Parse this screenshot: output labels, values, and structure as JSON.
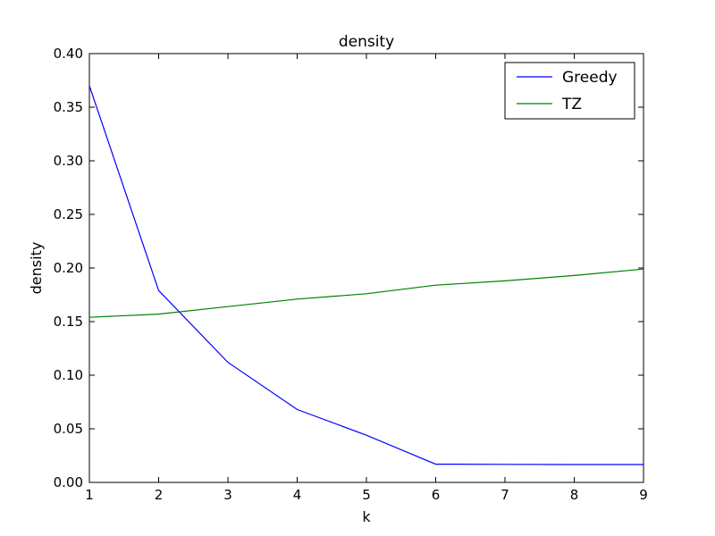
{
  "chart_data": {
    "type": "line",
    "title": "density",
    "xlabel": "k",
    "ylabel": "density",
    "x": [
      1,
      2,
      3,
      4,
      5,
      6,
      7,
      8,
      9
    ],
    "xlim": [
      1,
      9
    ],
    "ylim": [
      0,
      0.4
    ],
    "x_ticks": [
      "1",
      "2",
      "3",
      "4",
      "5",
      "6",
      "7",
      "8",
      "9"
    ],
    "y_ticks": [
      "0.00",
      "0.05",
      "0.10",
      "0.15",
      "0.20",
      "0.25",
      "0.30",
      "0.35",
      "0.40"
    ],
    "grid": false,
    "legend_position": "top-right",
    "series": [
      {
        "name": "Greedy",
        "color": "#0000ff",
        "values": [
          0.37,
          0.179,
          0.112,
          0.068,
          0.044,
          0.017,
          0.0168,
          0.0167,
          0.0167
        ]
      },
      {
        "name": "TZ",
        "color": "#008000",
        "values": [
          0.154,
          0.157,
          0.164,
          0.171,
          0.176,
          0.184,
          0.188,
          0.193,
          0.199
        ]
      }
    ]
  }
}
